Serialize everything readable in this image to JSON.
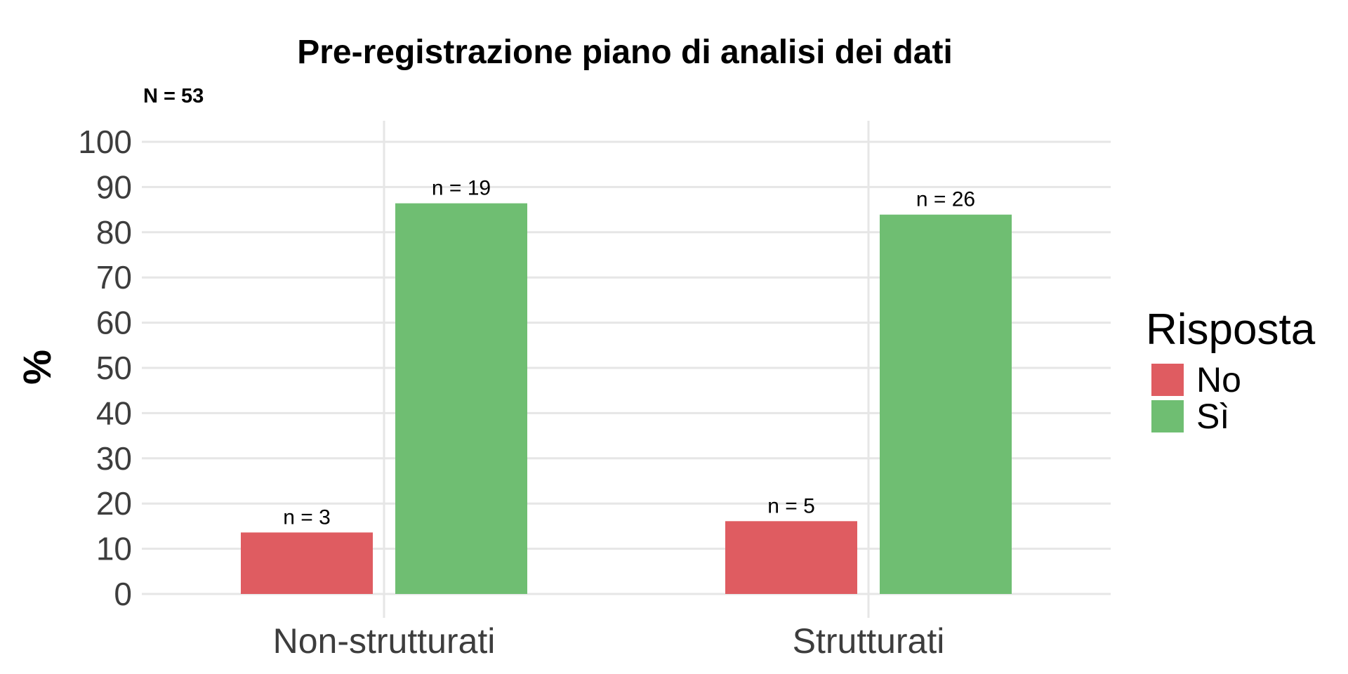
{
  "chart_data": {
    "type": "bar",
    "title": "Pre-registrazione piano di analisi dei dati",
    "subtitle": "N = 53",
    "xlabel": "",
    "ylabel": "%",
    "ylim": [
      0,
      100
    ],
    "yticks": [
      "0",
      "10",
      "20",
      "30",
      "40",
      "50",
      "60",
      "70",
      "80",
      "90",
      "100"
    ],
    "categories": [
      "Non-strutturati",
      "Strutturati"
    ],
    "series": [
      {
        "name": "No",
        "color": "#df5c61",
        "values": [
          13.6,
          16.1
        ],
        "labels": [
          "n = 3",
          "n = 5"
        ]
      },
      {
        "name": "Sì",
        "color": "#6fbe72",
        "values": [
          86.4,
          83.9
        ],
        "labels": [
          "n = 19",
          "n = 26"
        ]
      }
    ],
    "legend": {
      "title": "Risposta",
      "position": "right"
    },
    "grid": true
  }
}
